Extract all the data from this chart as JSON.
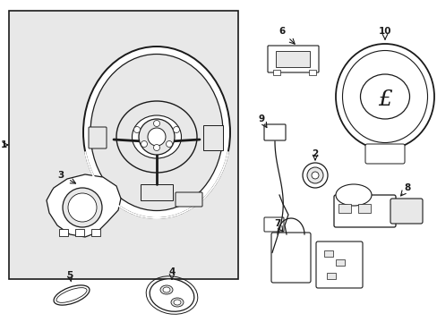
{
  "bg": "#ffffff",
  "box_bg": "#e8e8e8",
  "lc": "#1a1a1a",
  "fig_w": 4.89,
  "fig_h": 3.6,
  "dpi": 100
}
